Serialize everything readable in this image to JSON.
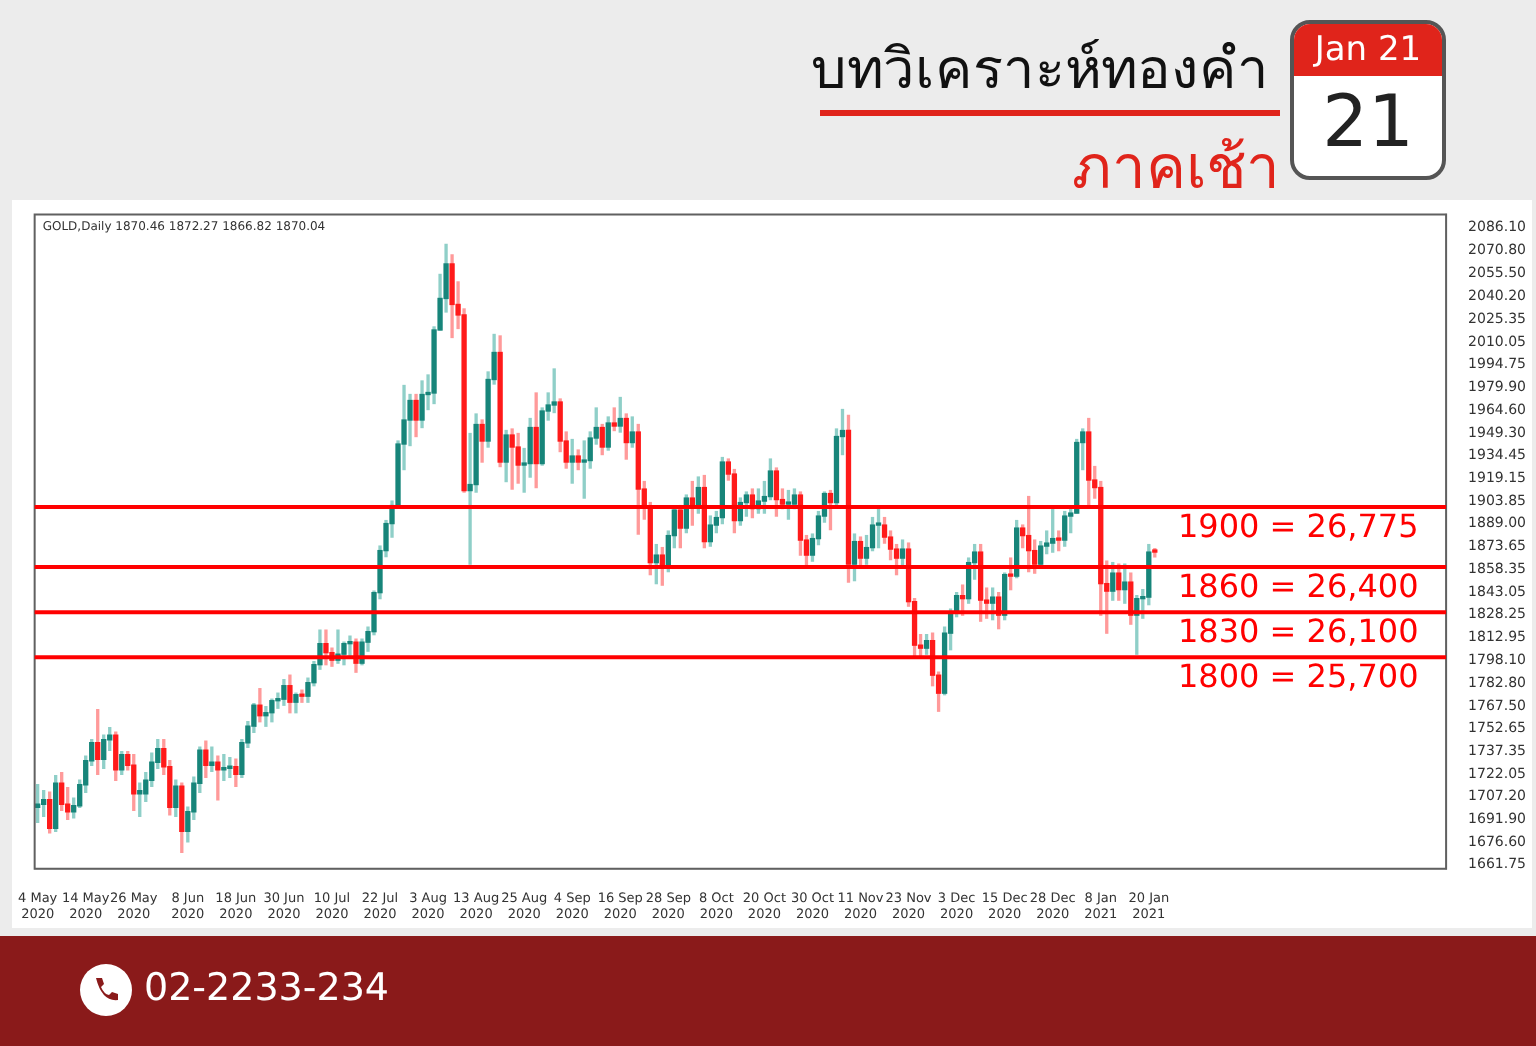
{
  "chart_data": {
    "type": "candlestick",
    "title": "บทวิเคราะห์ทองคำ",
    "subtitle": "ภาคเช้า",
    "annotations": [
      "Jan 21",
      "21",
      "02-2233-234",
      "GOLD,Daily 1870.46 1872.27 1866.82 1870.04"
    ],
    "categories": [
      "4 May 2020",
      null,
      null,
      null,
      null,
      null,
      null,
      null,
      "14 May 2020",
      null,
      null,
      null,
      null,
      null,
      null,
      null,
      "26 May 2020",
      null,
      null,
      null,
      null,
      null,
      null,
      null,
      null,
      "8 Jun 2020",
      null,
      null,
      null,
      null,
      null,
      null,
      null,
      "18 Jun 2020",
      null,
      null,
      null,
      null,
      null,
      null,
      null,
      "30 Jun 2020",
      null,
      null,
      null,
      null,
      null,
      null,
      null,
      "10 Jul 2020",
      null,
      null,
      null,
      null,
      null,
      null,
      null,
      "22 Jul 2020",
      null,
      null,
      null,
      null,
      null,
      null,
      null,
      "3 Aug 2020",
      null,
      null,
      null,
      null,
      null,
      null,
      null,
      "13 Aug 2020",
      null,
      null,
      null,
      null,
      null,
      null,
      null,
      "25 Aug 2020",
      null,
      null,
      null,
      null,
      null,
      null,
      null,
      "4 Sep 2020",
      null,
      null,
      null,
      null,
      null,
      null,
      null,
      "16 Sep 2020",
      null,
      null,
      null,
      null,
      null,
      null,
      null,
      "28 Sep 2020",
      null,
      null,
      null,
      null,
      null,
      null,
      null,
      "8 Oct 2020",
      null,
      null,
      null,
      null,
      null,
      null,
      null,
      "20 Oct 2020",
      null,
      null,
      null,
      null,
      null,
      null,
      null,
      "30 Oct 2020",
      null,
      null,
      null,
      null,
      null,
      null,
      null,
      "11 Nov 2020",
      null,
      null,
      null,
      null,
      null,
      null,
      null,
      "23 Nov 2020",
      null,
      null,
      null,
      null,
      null,
      null,
      null,
      "3 Dec 2020",
      null,
      null,
      null,
      null,
      null,
      null,
      null,
      "15 Dec 2020",
      null,
      null,
      null,
      null,
      null,
      null,
      null,
      "28 Dec 2020",
      null,
      null,
      null,
      null,
      null,
      null,
      null,
      "8 Jan 2021",
      null,
      null,
      null,
      null,
      null,
      null,
      null,
      "20 Jan 2021",
      null,
      null,
      null,
      null,
      null,
      null,
      null,
      null,
      null,
      null,
      null,
      null,
      null,
      null,
      null,
      null,
      null,
      null,
      null,
      null,
      null,
      null,
      null,
      null,
      null,
      null,
      null,
      null,
      null,
      null,
      null,
      null,
      null,
      null,
      null,
      null,
      null,
      null,
      null,
      null,
      null,
      null,
      null,
      null,
      null,
      null,
      null,
      null,
      null
    ],
    "ohlc": [
      [
        1700,
        1715,
        1690,
        1702
      ],
      [
        1702,
        1711,
        1694,
        1705
      ],
      [
        1705,
        1710,
        1683,
        1686
      ],
      [
        1686,
        1721,
        1684,
        1716
      ],
      [
        1716,
        1723,
        1698,
        1702
      ],
      [
        1702,
        1713,
        1692,
        1697
      ],
      [
        1697,
        1706,
        1693,
        1701
      ],
      [
        1701,
        1718,
        1700,
        1715
      ],
      [
        1715,
        1734,
        1710,
        1731
      ],
      [
        1731,
        1745,
        1728,
        1743
      ],
      [
        1743,
        1765,
        1722,
        1732
      ],
      [
        1732,
        1748,
        1726,
        1745
      ],
      [
        1745,
        1753,
        1738,
        1748
      ],
      [
        1748,
        1750,
        1718,
        1725
      ],
      [
        1725,
        1737,
        1722,
        1735
      ],
      [
        1735,
        1737,
        1725,
        1728
      ],
      [
        1728,
        1735,
        1698,
        1709
      ],
      [
        1709,
        1716,
        1694,
        1711
      ],
      [
        1709,
        1723,
        1704,
        1718
      ],
      [
        1718,
        1736,
        1714,
        1730
      ],
      [
        1730,
        1745,
        1726,
        1739
      ],
      [
        1739,
        1745,
        1722,
        1727
      ],
      [
        1727,
        1731,
        1695,
        1700
      ],
      [
        1700,
        1718,
        1694,
        1714
      ],
      [
        1714,
        1716,
        1670,
        1684
      ],
      [
        1684,
        1700,
        1677,
        1697
      ],
      [
        1697,
        1720,
        1692,
        1716
      ],
      [
        1716,
        1740,
        1710,
        1738
      ],
      [
        1738,
        1744,
        1720,
        1728
      ],
      [
        1728,
        1740,
        1724,
        1730
      ],
      [
        1730,
        1734,
        1705,
        1725
      ],
      [
        1725,
        1735,
        1718,
        1726
      ],
      [
        1726,
        1733,
        1720,
        1727
      ],
      [
        1727,
        1732,
        1714,
        1722
      ],
      [
        1722,
        1745,
        1720,
        1743
      ],
      [
        1743,
        1757,
        1740,
        1754
      ],
      [
        1754,
        1769,
        1750,
        1768
      ],
      [
        1768,
        1779,
        1757,
        1761
      ],
      [
        1761,
        1767,
        1754,
        1763
      ],
      [
        1763,
        1772,
        1757,
        1771
      ],
      [
        1771,
        1776,
        1766,
        1772
      ],
      [
        1772,
        1785,
        1768,
        1781
      ],
      [
        1781,
        1788,
        1763,
        1770
      ],
      [
        1770,
        1776,
        1763,
        1775
      ],
      [
        1775,
        1778,
        1770,
        1774
      ],
      [
        1774,
        1786,
        1770,
        1783
      ],
      [
        1783,
        1797,
        1781,
        1795
      ],
      [
        1795,
        1818,
        1792,
        1809
      ],
      [
        1809,
        1818,
        1795,
        1803
      ],
      [
        1803,
        1806,
        1794,
        1798
      ],
      [
        1798,
        1818,
        1796,
        1802
      ],
      [
        1802,
        1810,
        1795,
        1809
      ],
      [
        1809,
        1814,
        1800,
        1810
      ],
      [
        1810,
        1812,
        1790,
        1796
      ],
      [
        1796,
        1812,
        1795,
        1810
      ],
      [
        1810,
        1820,
        1804,
        1817
      ],
      [
        1817,
        1844,
        1815,
        1843
      ],
      [
        1843,
        1874,
        1839,
        1871
      ],
      [
        1871,
        1891,
        1867,
        1889
      ],
      [
        1889,
        1904,
        1880,
        1901
      ],
      [
        1901,
        1944,
        1900,
        1942
      ],
      [
        1942,
        1981,
        1925,
        1958
      ],
      [
        1958,
        1975,
        1941,
        1971
      ],
      [
        1971,
        1975,
        1947,
        1958
      ],
      [
        1958,
        1984,
        1953,
        1975
      ],
      [
        1975,
        1988,
        1965,
        1976
      ],
      [
        1976,
        2020,
        1969,
        2018
      ],
      [
        2018,
        2055,
        2018,
        2039
      ],
      [
        2039,
        2075,
        2030,
        2062
      ],
      [
        2062,
        2068,
        2013,
        2035
      ],
      [
        2035,
        2050,
        2019,
        2028
      ],
      [
        2028,
        2032,
        1910,
        1911
      ],
      [
        1911,
        1949,
        1862,
        1915
      ],
      [
        1915,
        1962,
        1910,
        1955
      ],
      [
        1955,
        1958,
        1930,
        1944
      ],
      [
        1944,
        1990,
        1940,
        1985
      ],
      [
        1985,
        2015,
        1982,
        2003
      ],
      [
        2003,
        2014,
        1927,
        1930
      ],
      [
        1930,
        1951,
        1917,
        1948
      ],
      [
        1948,
        1952,
        1912,
        1940
      ],
      [
        1940,
        1949,
        1916,
        1928
      ],
      [
        1928,
        1939,
        1910,
        1929
      ],
      [
        1929,
        1959,
        1920,
        1953
      ],
      [
        1953,
        1976,
        1913,
        1929
      ],
      [
        1929,
        1966,
        1928,
        1964
      ],
      [
        1964,
        1976,
        1958,
        1968
      ],
      [
        1968,
        1992,
        1963,
        1970
      ],
      [
        1970,
        1972,
        1937,
        1944
      ],
      [
        1944,
        1950,
        1926,
        1930
      ],
      [
        1930,
        1945,
        1916,
        1934
      ],
      [
        1934,
        1938,
        1925,
        1930
      ],
      [
        1930,
        1944,
        1906,
        1931
      ],
      [
        1931,
        1950,
        1926,
        1946
      ],
      [
        1946,
        1966,
        1942,
        1953
      ],
      [
        1953,
        1955,
        1935,
        1940
      ],
      [
        1940,
        1960,
        1938,
        1956
      ],
      [
        1956,
        1966,
        1951,
        1954
      ],
      [
        1954,
        1973,
        1950,
        1959
      ],
      [
        1959,
        1962,
        1932,
        1943
      ],
      [
        1943,
        1960,
        1940,
        1950
      ],
      [
        1950,
        1955,
        1882,
        1912
      ],
      [
        1912,
        1917,
        1892,
        1900
      ],
      [
        1900,
        1903,
        1855,
        1863
      ],
      [
        1863,
        1875,
        1849,
        1868
      ],
      [
        1868,
        1873,
        1848,
        1861
      ],
      [
        1861,
        1884,
        1857,
        1881
      ],
      [
        1881,
        1900,
        1873,
        1898
      ],
      [
        1898,
        1901,
        1873,
        1886
      ],
      [
        1886,
        1908,
        1883,
        1906
      ],
      [
        1906,
        1917,
        1888,
        1900
      ],
      [
        1900,
        1920,
        1896,
        1913
      ],
      [
        1913,
        1921,
        1873,
        1877
      ],
      [
        1877,
        1894,
        1874,
        1888
      ],
      [
        1888,
        1897,
        1883,
        1893
      ],
      [
        1893,
        1933,
        1889,
        1930
      ],
      [
        1930,
        1932,
        1918,
        1922
      ],
      [
        1922,
        1925,
        1883,
        1891
      ],
      [
        1891,
        1906,
        1888,
        1903
      ],
      [
        1903,
        1910,
        1894,
        1908
      ],
      [
        1908,
        1912,
        1893,
        1899
      ],
      [
        1899,
        1912,
        1896,
        1904
      ],
      [
        1904,
        1917,
        1896,
        1907
      ],
      [
        1907,
        1932,
        1905,
        1924
      ],
      [
        1924,
        1926,
        1894,
        1905
      ],
      [
        1905,
        1912,
        1899,
        1902
      ],
      [
        1902,
        1911,
        1892,
        1902
      ],
      [
        1902,
        1912,
        1899,
        1908
      ],
      [
        1908,
        1910,
        1868,
        1878
      ],
      [
        1878,
        1881,
        1860,
        1868
      ],
      [
        1868,
        1882,
        1864,
        1879
      ],
      [
        1879,
        1897,
        1875,
        1894
      ],
      [
        1894,
        1910,
        1890,
        1909
      ],
      [
        1909,
        1911,
        1885,
        1903
      ],
      [
        1903,
        1952,
        1900,
        1947
      ],
      [
        1947,
        1965,
        1935,
        1951
      ],
      [
        1951,
        1961,
        1850,
        1862
      ],
      [
        1862,
        1882,
        1851,
        1877
      ],
      [
        1877,
        1880,
        1861,
        1866
      ],
      [
        1866,
        1881,
        1862,
        1873
      ],
      [
        1873,
        1893,
        1871,
        1888
      ],
      [
        1888,
        1899,
        1873,
        1888
      ],
      [
        1888,
        1893,
        1876,
        1880
      ],
      [
        1880,
        1884,
        1865,
        1872
      ],
      [
        1872,
        1875,
        1855,
        1866
      ],
      [
        1866,
        1878,
        1861,
        1872
      ],
      [
        1872,
        1876,
        1834,
        1837
      ],
      [
        1837,
        1839,
        1800,
        1808
      ],
      [
        1808,
        1815,
        1800,
        1806
      ],
      [
        1806,
        1815,
        1802,
        1811
      ],
      [
        1811,
        1816,
        1781,
        1788
      ],
      [
        1788,
        1790,
        1764,
        1776
      ],
      [
        1776,
        1820,
        1775,
        1816
      ],
      [
        1816,
        1832,
        1805,
        1830
      ],
      [
        1830,
        1843,
        1827,
        1841
      ],
      [
        1841,
        1848,
        1828,
        1839
      ],
      [
        1839,
        1866,
        1836,
        1863
      ],
      [
        1863,
        1875,
        1852,
        1870
      ],
      [
        1870,
        1875,
        1824,
        1838
      ],
      [
        1838,
        1846,
        1826,
        1836
      ],
      [
        1836,
        1846,
        1825,
        1840
      ],
      [
        1840,
        1843,
        1819,
        1828
      ],
      [
        1828,
        1856,
        1825,
        1855
      ],
      [
        1855,
        1866,
        1845,
        1854
      ],
      [
        1854,
        1891,
        1853,
        1886
      ],
      [
        1886,
        1888,
        1873,
        1881
      ],
      [
        1881,
        1907,
        1857,
        1871
      ],
      [
        1871,
        1878,
        1856,
        1862
      ],
      [
        1862,
        1877,
        1860,
        1874
      ],
      [
        1874,
        1884,
        1869,
        1876
      ],
      [
        1876,
        1900,
        1870,
        1879
      ],
      [
        1879,
        1884,
        1871,
        1878
      ],
      [
        1878,
        1897,
        1874,
        1894
      ],
      [
        1894,
        1900,
        1883,
        1896
      ],
      [
        1896,
        1945,
        1896,
        1943
      ],
      [
        1943,
        1952,
        1925,
        1950
      ],
      [
        1950,
        1959,
        1900,
        1918
      ],
      [
        1918,
        1927,
        1906,
        1913
      ],
      [
        1913,
        1917,
        1828,
        1849
      ],
      [
        1849,
        1864,
        1816,
        1844
      ],
      [
        1844,
        1863,
        1838,
        1856
      ],
      [
        1856,
        1862,
        1838,
        1845
      ],
      [
        1845,
        1862,
        1836,
        1850
      ],
      [
        1850,
        1856,
        1822,
        1828
      ],
      [
        1828,
        1841,
        1802,
        1839
      ],
      [
        1839,
        1845,
        1826,
        1840
      ],
      [
        1840,
        1875,
        1835,
        1870
      ],
      [
        1870.46,
        1872.27,
        1866.82,
        1870.04
      ],
      null,
      null,
      null,
      null,
      null,
      null,
      null,
      null,
      null,
      null,
      null,
      null,
      null,
      null,
      null,
      null,
      null,
      null,
      null,
      null,
      null,
      null,
      null,
      null,
      null,
      null,
      null,
      null,
      null,
      null,
      null,
      null,
      null,
      null,
      null,
      null,
      null,
      null,
      null,
      null,
      null,
      null,
      null,
      null,
      null,
      null,
      null,
      null
    ],
    "ylim": [
      1659,
      2095
    ],
    "yticks": [
      {
        "value": 1661.75,
        "label": "1661.75"
      },
      {
        "value": 1676.6,
        "label": "1676.60"
      },
      {
        "value": 1691.9,
        "label": "1691.90"
      },
      {
        "value": 1707.2,
        "label": "1707.20"
      },
      {
        "value": 1722.05,
        "label": "1722.05"
      },
      {
        "value": 1737.35,
        "label": "1737.35"
      },
      {
        "value": 1752.65,
        "label": "1752.65"
      },
      {
        "value": 1767.5,
        "label": "1767.50"
      },
      {
        "value": 1782.8,
        "label": "1782.80"
      },
      {
        "value": 1798.1,
        "label": "1798.10"
      },
      {
        "value": 1812.95,
        "label": "1812.95"
      },
      {
        "value": 1828.25,
        "label": "1828.25"
      },
      {
        "value": 1843.05,
        "label": "1843.05"
      },
      {
        "value": 1858.35,
        "label": "1858.35"
      },
      {
        "value": 1873.65,
        "label": "1873.65"
      },
      {
        "value": 1889,
        "label": "1889.00"
      },
      {
        "value": 1903.85,
        "label": "1903.85"
      },
      {
        "value": 1919.15,
        "label": "1919.15"
      },
      {
        "value": 1934.45,
        "label": "1934.45"
      },
      {
        "value": 1949.3,
        "label": "1949.30"
      },
      {
        "value": 1964.6,
        "label": "1964.60"
      },
      {
        "value": 1979.9,
        "label": "1979.90"
      },
      {
        "value": 1994.75,
        "label": "1994.75"
      },
      {
        "value": 2010.05,
        "label": "2010.05"
      },
      {
        "value": 2025.35,
        "label": "2025.35"
      },
      {
        "value": 2040.2,
        "label": "2040.20"
      },
      {
        "value": 2055.5,
        "label": "2055.50"
      },
      {
        "value": 2070.8,
        "label": "2070.80"
      },
      {
        "value": 2086.1,
        "label": "2086.10"
      }
    ],
    "ref_lines": [
      {
        "axis": "y",
        "value": 1900,
        "label": "1900 = 26,775",
        "color": "#ff0000"
      },
      {
        "axis": "y",
        "value": 1860,
        "label": "1860 = 26,400",
        "color": "#ff0000"
      },
      {
        "axis": "y",
        "value": 1830,
        "label": "1830 = 26,100",
        "color": "#ff0000"
      },
      {
        "axis": "y",
        "value": 1800,
        "label": "1800 = 25,700",
        "color": "#ff0000"
      }
    ]
  }
}
